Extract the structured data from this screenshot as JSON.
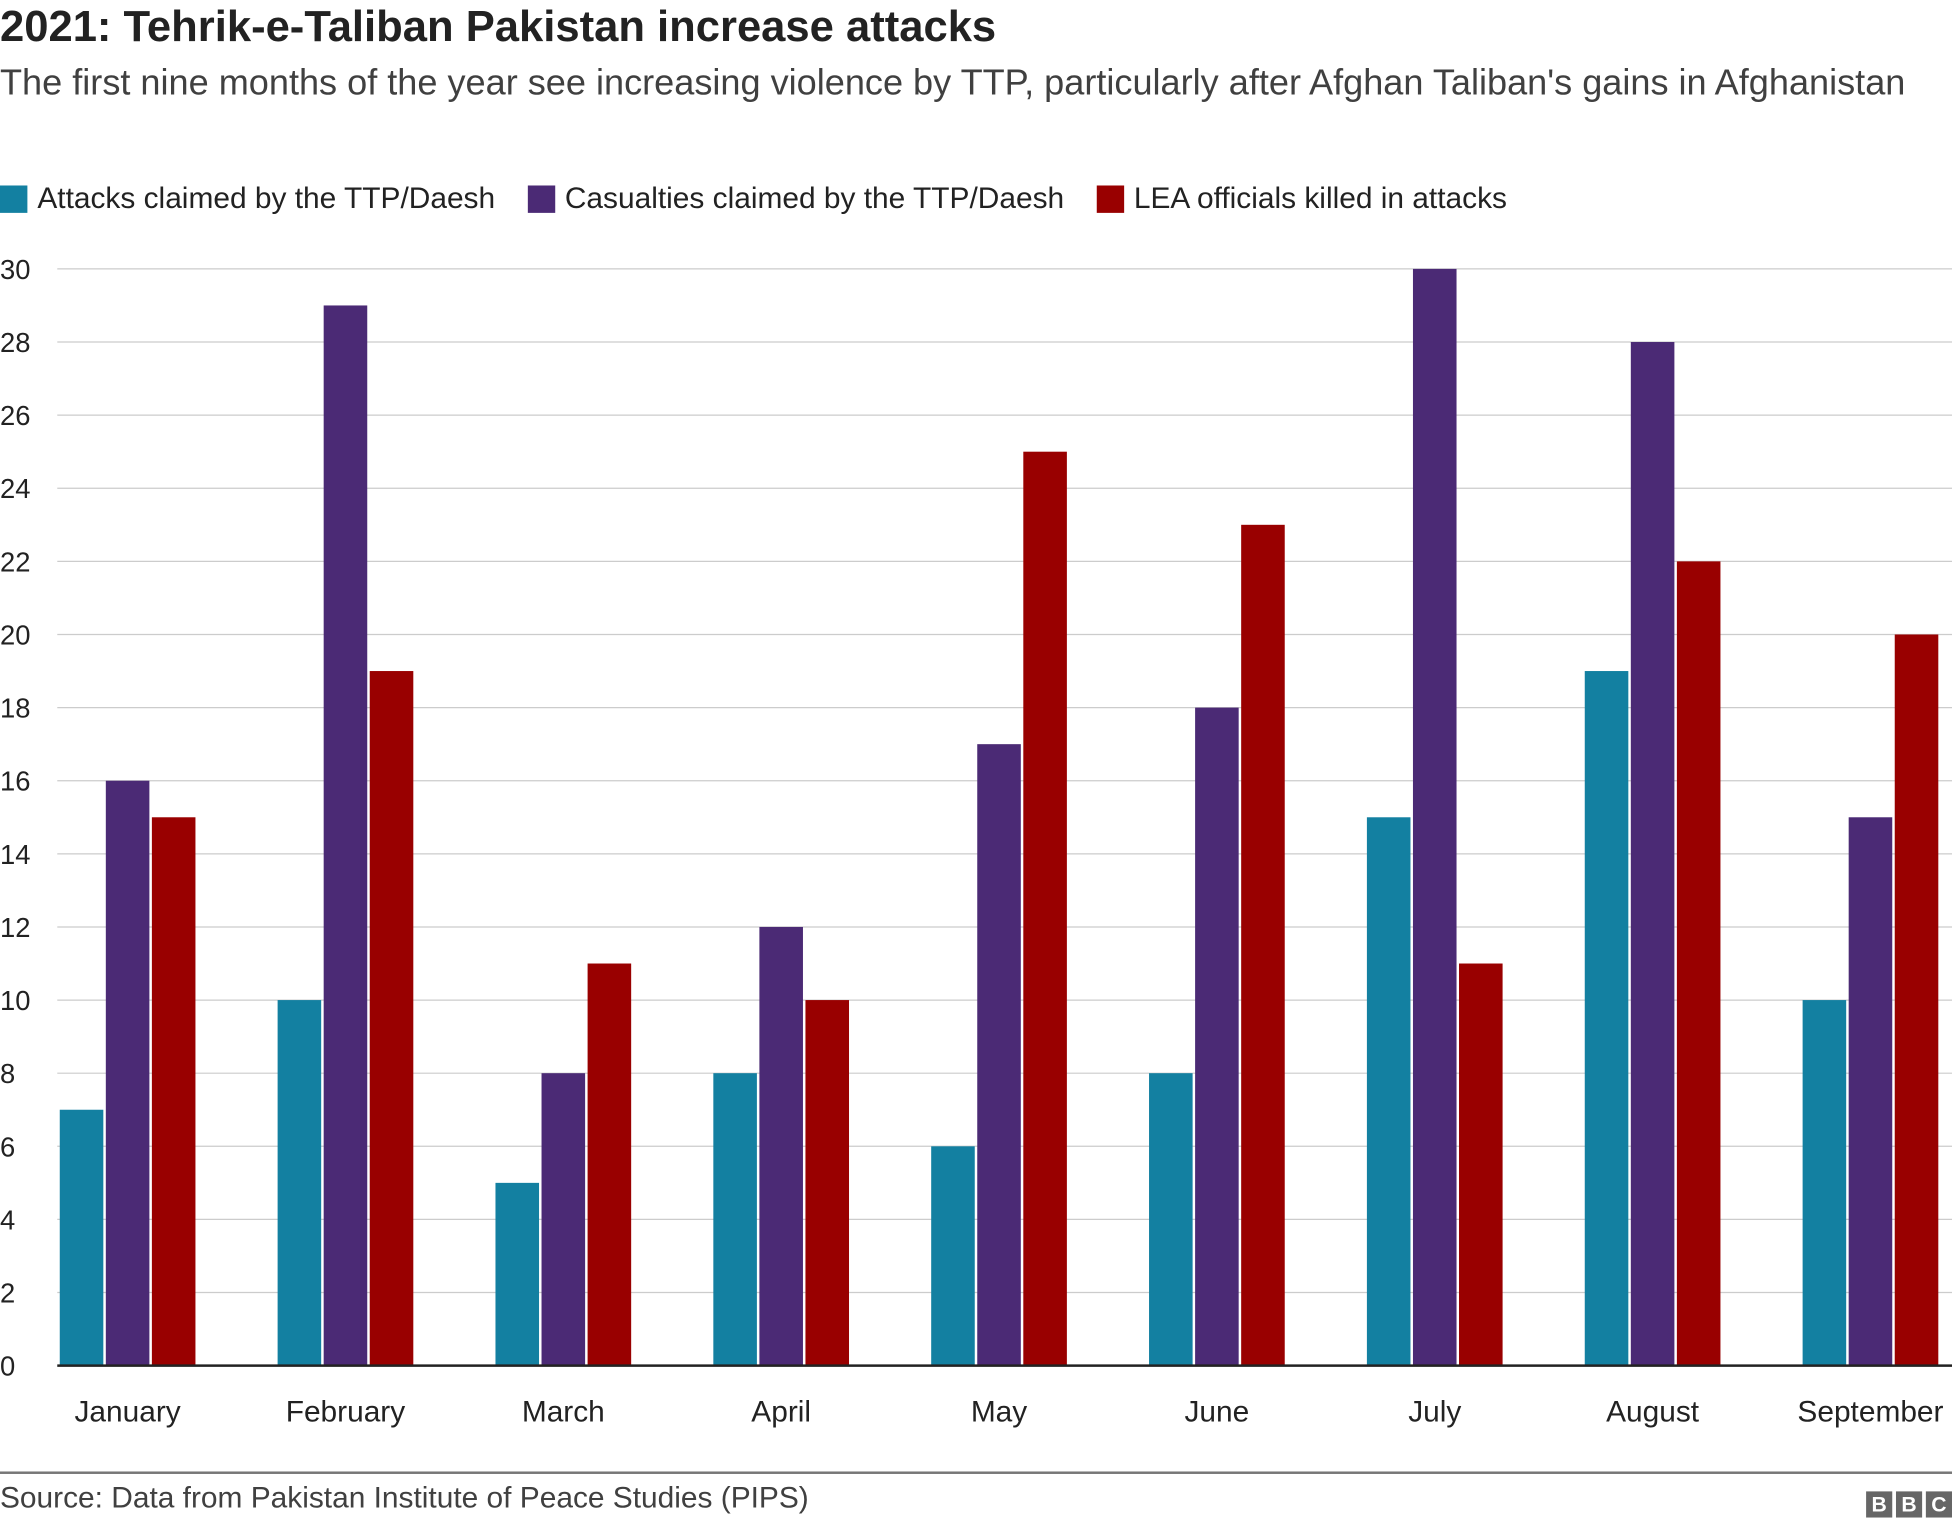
{
  "chart_data": {
    "type": "bar",
    "title": "2021: Tehrik-e-Taliban Pakistan increase attacks",
    "subtitle": "The first nine months of the year see increasing violence by TTP, particularly after Afghan Taliban's gains in Afghanistan",
    "categories": [
      "January",
      "February",
      "March",
      "April",
      "May",
      "June",
      "July",
      "August",
      "September"
    ],
    "series": [
      {
        "name": "Attacks claimed by the TTP/Daesh",
        "color": "#1380a1",
        "values": [
          7,
          10,
          5,
          8,
          6,
          8,
          15,
          19,
          10
        ]
      },
      {
        "name": "Casualties claimed by the TTP/Daesh",
        "color": "#4b2a75",
        "values": [
          16,
          29,
          8,
          12,
          17,
          18,
          30,
          28,
          15
        ]
      },
      {
        "name": "LEA officials killed in attacks",
        "color": "#990000",
        "values": [
          15,
          19,
          11,
          10,
          25,
          23,
          11,
          22,
          20
        ]
      }
    ],
    "ylim": [
      0,
      30
    ],
    "yticks": [
      "0",
      "2",
      "4",
      "6",
      "8",
      "10",
      "12",
      "14",
      "16",
      "18",
      "20",
      "22",
      "24",
      "26",
      "28",
      "30"
    ],
    "grid": true,
    "legend": "top-left",
    "source": "Source: Data from Pakistan Institute of Peace Studies (PIPS)",
    "logo": "BBC"
  }
}
